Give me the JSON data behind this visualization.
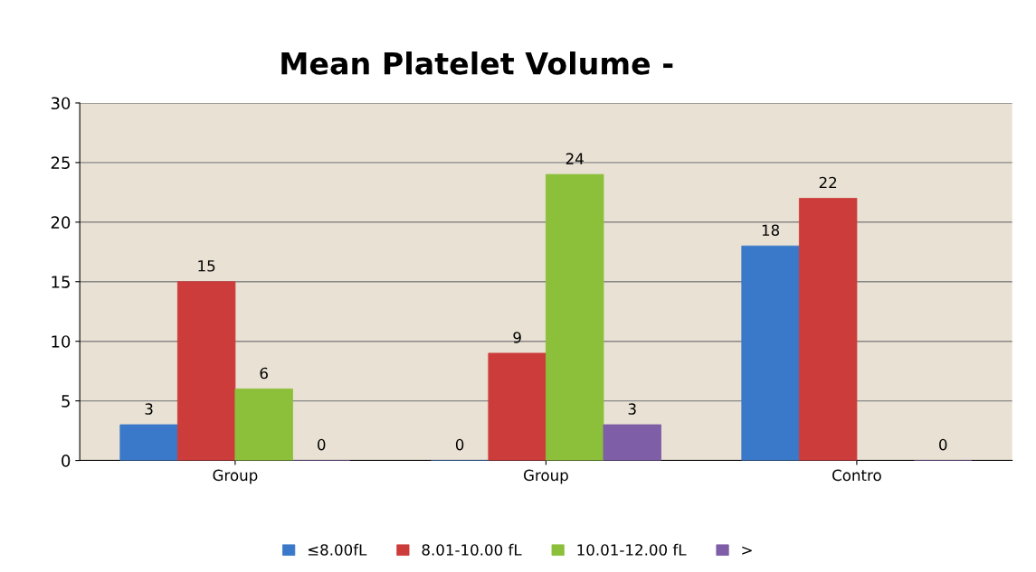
{
  "chart_data": {
    "type": "bar",
    "title": "Mean Platelet Volume -",
    "categories": [
      "Group",
      "Group",
      "Contro"
    ],
    "series": [
      {
        "name": "≤8.00fL",
        "color": "#3a78c9",
        "values": [
          3,
          0,
          18
        ]
      },
      {
        "name": "8.01-10.00 fL",
        "color": "#cc3c3a",
        "values": [
          15,
          9,
          22
        ]
      },
      {
        "name": "10.01-12.00 fL",
        "color": "#8cbf3a",
        "values": [
          6,
          24,
          null
        ]
      },
      {
        "name": ">",
        "color": "#7e5ea6",
        "values": [
          0,
          3,
          0
        ]
      }
    ],
    "ylim": [
      0,
      30
    ],
    "yticks": [
      0,
      5,
      10,
      15,
      20,
      25,
      30
    ],
    "grid": "y",
    "legend": "bottom",
    "data_labels": true
  }
}
